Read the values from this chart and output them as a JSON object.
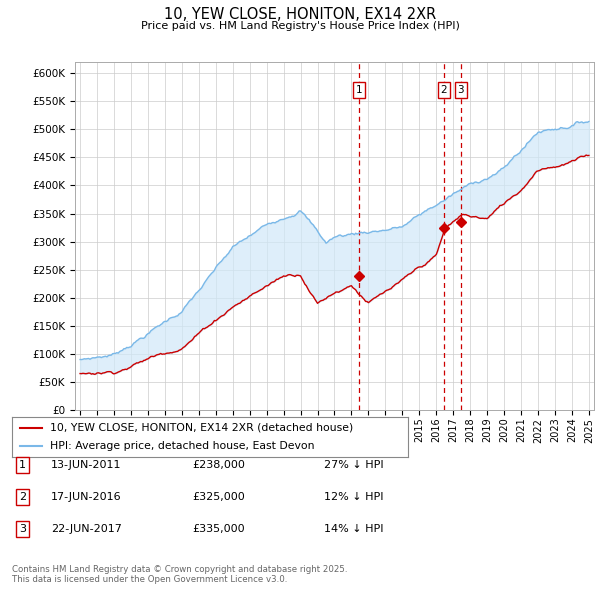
{
  "title": "10, YEW CLOSE, HONITON, EX14 2XR",
  "subtitle": "Price paid vs. HM Land Registry's House Price Index (HPI)",
  "hpi_color": "#7ab8e8",
  "price_color": "#cc0000",
  "fill_color": "#d0e8f8",
  "vline_color": "#cc0000",
  "annotation_box_color": "#cc0000",
  "ylim": [
    0,
    620000
  ],
  "yticks": [
    0,
    50000,
    100000,
    150000,
    200000,
    250000,
    300000,
    350000,
    400000,
    450000,
    500000,
    550000,
    600000
  ],
  "ytick_labels": [
    "£0",
    "£50K",
    "£100K",
    "£150K",
    "£200K",
    "£250K",
    "£300K",
    "£350K",
    "£400K",
    "£450K",
    "£500K",
    "£550K",
    "£600K"
  ],
  "xlim_start": 1994.7,
  "xlim_end": 2025.3,
  "events": [
    {
      "num": 1,
      "date": "13-JUN-2011",
      "price": "£238,000",
      "note": "27% ↓ HPI",
      "year": 2011.45
    },
    {
      "num": 2,
      "date": "17-JUN-2016",
      "price": "£325,000",
      "note": "12% ↓ HPI",
      "year": 2016.45
    },
    {
      "num": 3,
      "date": "22-JUN-2017",
      "price": "£335,000",
      "note": "14% ↓ HPI",
      "year": 2017.45
    }
  ],
  "legend_entries": [
    "10, YEW CLOSE, HONITON, EX14 2XR (detached house)",
    "HPI: Average price, detached house, East Devon"
  ],
  "table_rows": [
    [
      "1",
      "13-JUN-2011",
      "£238,000",
      "27% ↓ HPI"
    ],
    [
      "2",
      "17-JUN-2016",
      "£325,000",
      "12% ↓ HPI"
    ],
    [
      "3",
      "22-JUN-2017",
      "£335,000",
      "14% ↓ HPI"
    ]
  ],
  "copyright": "Contains HM Land Registry data © Crown copyright and database right 2025.\nThis data is licensed under the Open Government Licence v3.0.",
  "background_color": "#ffffff",
  "grid_color": "#cccccc",
  "sale_marker_years": [
    2011.45,
    2016.45,
    2017.45
  ],
  "sale_marker_values": [
    238000,
    325000,
    335000
  ]
}
